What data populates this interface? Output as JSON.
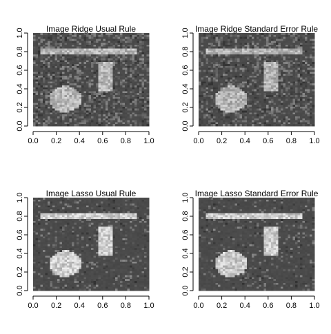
{
  "chart_data": [
    {
      "type": "heatmap",
      "title": "Image Ridge Usual Rule",
      "xlim": [
        0,
        1
      ],
      "ylim": [
        0,
        1
      ],
      "x_ticks": [
        "0.0",
        "0.2",
        "0.4",
        "0.6",
        "0.8",
        "1.0"
      ],
      "y_ticks": [
        "0.0",
        "0.2",
        "0.4",
        "0.6",
        "0.8",
        "1.0"
      ],
      "grid": false,
      "grid_cells": 48,
      "colors": {
        "background": "#4a4a4a",
        "feature": "#b8b8b8"
      },
      "features": [
        {
          "shape": "bar",
          "x": [
            0.06,
            0.9
          ],
          "y": [
            0.78,
            0.83
          ]
        },
        {
          "shape": "bar",
          "x": [
            0.57,
            0.68
          ],
          "y": [
            0.37,
            0.68
          ]
        },
        {
          "shape": "disk",
          "center": [
            0.28,
            0.29
          ],
          "radius": 0.14
        }
      ],
      "noise_level": 0.55
    },
    {
      "type": "heatmap",
      "title": "Image Ridge Standard Error Rule",
      "xlim": [
        0,
        1
      ],
      "ylim": [
        0,
        1
      ],
      "x_ticks": [
        "0.0",
        "0.2",
        "0.4",
        "0.6",
        "0.8",
        "1.0"
      ],
      "y_ticks": [
        "0.0",
        "0.2",
        "0.4",
        "0.6",
        "0.8",
        "1.0"
      ],
      "grid": false,
      "grid_cells": 48,
      "colors": {
        "background": "#4a4a4a",
        "feature": "#b3b3b3"
      },
      "features": [
        {
          "shape": "bar",
          "x": [
            0.06,
            0.9
          ],
          "y": [
            0.78,
            0.83
          ]
        },
        {
          "shape": "bar",
          "x": [
            0.57,
            0.68
          ],
          "y": [
            0.37,
            0.68
          ]
        },
        {
          "shape": "disk",
          "center": [
            0.28,
            0.29
          ],
          "radius": 0.14
        }
      ],
      "noise_level": 0.5
    },
    {
      "type": "heatmap",
      "title": "Image Lasso Usual Rule",
      "xlim": [
        0,
        1
      ],
      "ylim": [
        0,
        1
      ],
      "x_ticks": [
        "0.0",
        "0.2",
        "0.4",
        "0.6",
        "0.8",
        "1.0"
      ],
      "y_ticks": [
        "0.0",
        "0.2",
        "0.4",
        "0.6",
        "0.8",
        "1.0"
      ],
      "grid": false,
      "grid_cells": 48,
      "colors": {
        "background": "#4a4a4a",
        "feature": "#cfcfcf"
      },
      "features": [
        {
          "shape": "bar",
          "x": [
            0.06,
            0.9
          ],
          "y": [
            0.78,
            0.83
          ]
        },
        {
          "shape": "bar",
          "x": [
            0.57,
            0.68
          ],
          "y": [
            0.37,
            0.68
          ]
        },
        {
          "shape": "disk",
          "center": [
            0.28,
            0.29
          ],
          "radius": 0.14
        }
      ],
      "noise_level": 0.2
    },
    {
      "type": "heatmap",
      "title": "Image Lasso Standard Error Rule",
      "xlim": [
        0,
        1
      ],
      "ylim": [
        0,
        1
      ],
      "x_ticks": [
        "0.0",
        "0.2",
        "0.4",
        "0.6",
        "0.8",
        "1.0"
      ],
      "y_ticks": [
        "0.0",
        "0.2",
        "0.4",
        "0.6",
        "0.8",
        "1.0"
      ],
      "grid": false,
      "grid_cells": 48,
      "colors": {
        "background": "#4a4a4a",
        "feature": "#cccccc"
      },
      "features": [
        {
          "shape": "bar",
          "x": [
            0.06,
            0.9
          ],
          "y": [
            0.78,
            0.83
          ]
        },
        {
          "shape": "bar",
          "x": [
            0.57,
            0.68
          ],
          "y": [
            0.37,
            0.68
          ]
        },
        {
          "shape": "disk",
          "center": [
            0.28,
            0.29
          ],
          "radius": 0.14
        }
      ],
      "noise_level": 0.18
    }
  ]
}
